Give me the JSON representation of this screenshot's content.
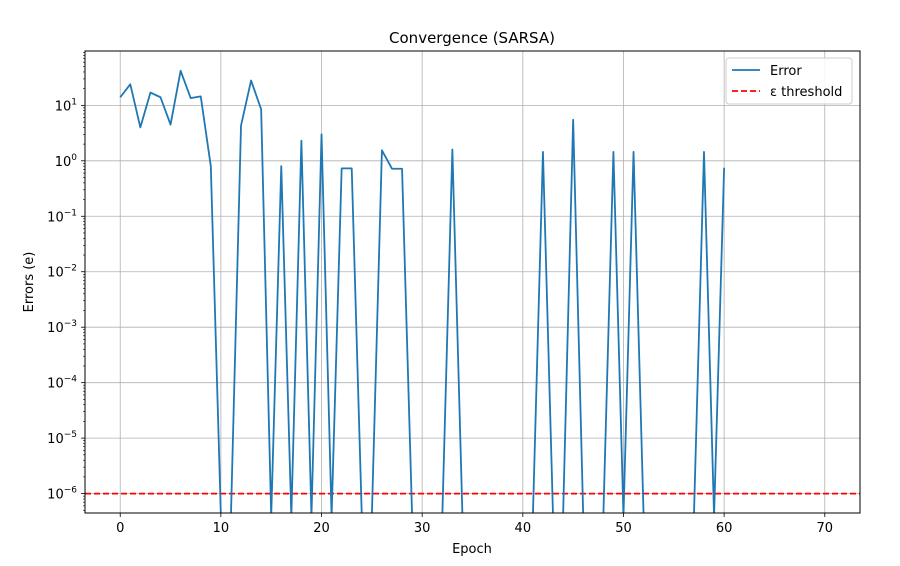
{
  "chart_data": {
    "type": "line",
    "title": "Convergence (SARSA)",
    "xlabel": "Epoch",
    "ylabel": "Errors (e)",
    "xlim": [
      -3.5,
      73.5
    ],
    "ylim_log10": [
      -6.35,
      1.98
    ],
    "yscale": "log",
    "grid": true,
    "legend_position": "top-right",
    "x_ticks": [
      0,
      10,
      20,
      30,
      40,
      50,
      60,
      70
    ],
    "x_tick_labels": [
      "0",
      "10",
      "20",
      "30",
      "40",
      "50",
      "60",
      "70"
    ],
    "y_tick_exponents": [
      -6,
      -5,
      -4,
      -3,
      -2,
      -1,
      0,
      1
    ],
    "y_tick_base": "10",
    "series": [
      {
        "name": "Error",
        "color": "#1f77b4",
        "style": "solid",
        "x": [
          0,
          1,
          2,
          3,
          4,
          5,
          6,
          7,
          8,
          9,
          10,
          11,
          12,
          13,
          14,
          15,
          16,
          17,
          18,
          19,
          20,
          21,
          22,
          23,
          24,
          25,
          26,
          27,
          28,
          29,
          30,
          31,
          32,
          33,
          34,
          35,
          36,
          37,
          38,
          39,
          40,
          41,
          42,
          43,
          44,
          45,
          46,
          47,
          48,
          49,
          50,
          51,
          52,
          53,
          54,
          55,
          56,
          57,
          58,
          59,
          60
        ],
        "y": [
          14,
          24,
          4,
          17,
          14,
          4.5,
          42,
          13.5,
          14.5,
          0.8,
          0,
          0,
          4.3,
          28,
          8.5,
          0,
          0.8,
          0,
          2.3,
          0,
          3,
          0,
          0.73,
          0.73,
          0,
          0,
          1.55,
          0.72,
          0.72,
          0,
          0,
          0,
          0,
          1.6,
          0,
          0,
          0,
          0,
          0,
          0,
          0,
          0,
          1.45,
          0,
          0,
          5.5,
          0,
          0,
          0,
          1.45,
          0,
          1.45,
          0,
          0,
          0,
          0,
          0,
          0,
          1.45,
          0,
          0.75
        ]
      },
      {
        "name": "ε threshold",
        "color": "#ff0000",
        "style": "dashed",
        "y_constant": 1e-06
      }
    ]
  }
}
